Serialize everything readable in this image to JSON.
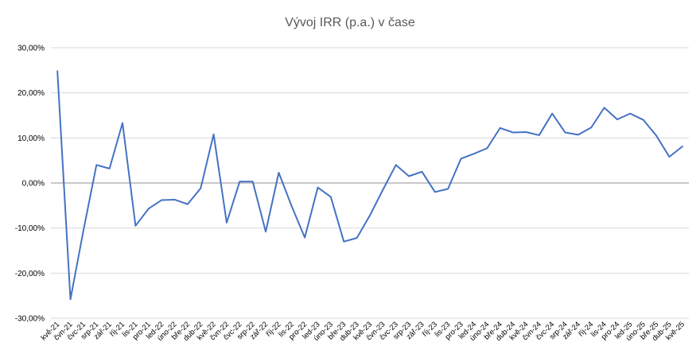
{
  "chart_data": {
    "type": "line",
    "title": "Vývoj IRR (p.a.) v čase",
    "xlabel": "",
    "ylabel": "",
    "ylim": [
      -30,
      30
    ],
    "yticks": [
      30,
      20,
      10,
      0,
      -10,
      -20,
      -30
    ],
    "ytick_labels": [
      "30,00%",
      "20,00%",
      "10,00%",
      "0,00%",
      "-10,00%",
      "-20,00%",
      "-30,00%"
    ],
    "grid": true,
    "legend": "none",
    "line_color": "#4472C4",
    "categories": [
      "kvě-21",
      "čvn-21",
      "čvc-21",
      "srp-21",
      "zář-21",
      "říj-21",
      "lis-21",
      "pro-21",
      "led-22",
      "úno-22",
      "bře-22",
      "dub-22",
      "kvě-22",
      "čvn-22",
      "čvc-22",
      "srp-22",
      "zář-22",
      "říj-22",
      "lis-22",
      "pro-22",
      "led-23",
      "úno-23",
      "bře-23",
      "dub-23",
      "kvě-23",
      "čvn-23",
      "čvc-23",
      "srp-23",
      "zář-23",
      "říj-23",
      "lis-23",
      "pro-23",
      "led-24",
      "úno-24",
      "bře-24",
      "dub-24",
      "kvě-24",
      "čvn-24",
      "čvc-24",
      "srp-24",
      "zář-24",
      "říj-24",
      "lis-24",
      "pro-24",
      "led-25",
      "úno-25",
      "bře-25",
      "dub-25",
      "kvě-25"
    ],
    "series": [
      {
        "values": [
          24.8,
          -25.8,
          -10.5,
          4.0,
          3.2,
          13.3,
          -9.5,
          -5.7,
          -3.8,
          -3.7,
          -4.7,
          -1.2,
          10.8,
          -8.8,
          0.3,
          0.3,
          -10.8,
          2.3,
          -5.2,
          -12.1,
          -1.0,
          -3.1,
          -13.0,
          -12.2,
          -7.2,
          -1.5,
          4.0,
          1.5,
          2.5,
          -2.0,
          -1.3,
          5.4,
          6.5,
          7.7,
          12.2,
          11.2,
          11.3,
          10.6,
          15.4,
          11.2,
          10.7,
          12.3,
          16.7,
          14.1,
          15.4,
          14.0,
          10.5,
          5.8,
          8.1
        ]
      }
    ]
  }
}
